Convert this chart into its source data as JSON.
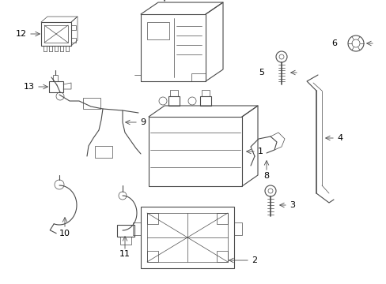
{
  "background_color": "#ffffff",
  "line_color": "#4a4a4a",
  "fig_width": 4.89,
  "fig_height": 3.6,
  "dpi": 100
}
